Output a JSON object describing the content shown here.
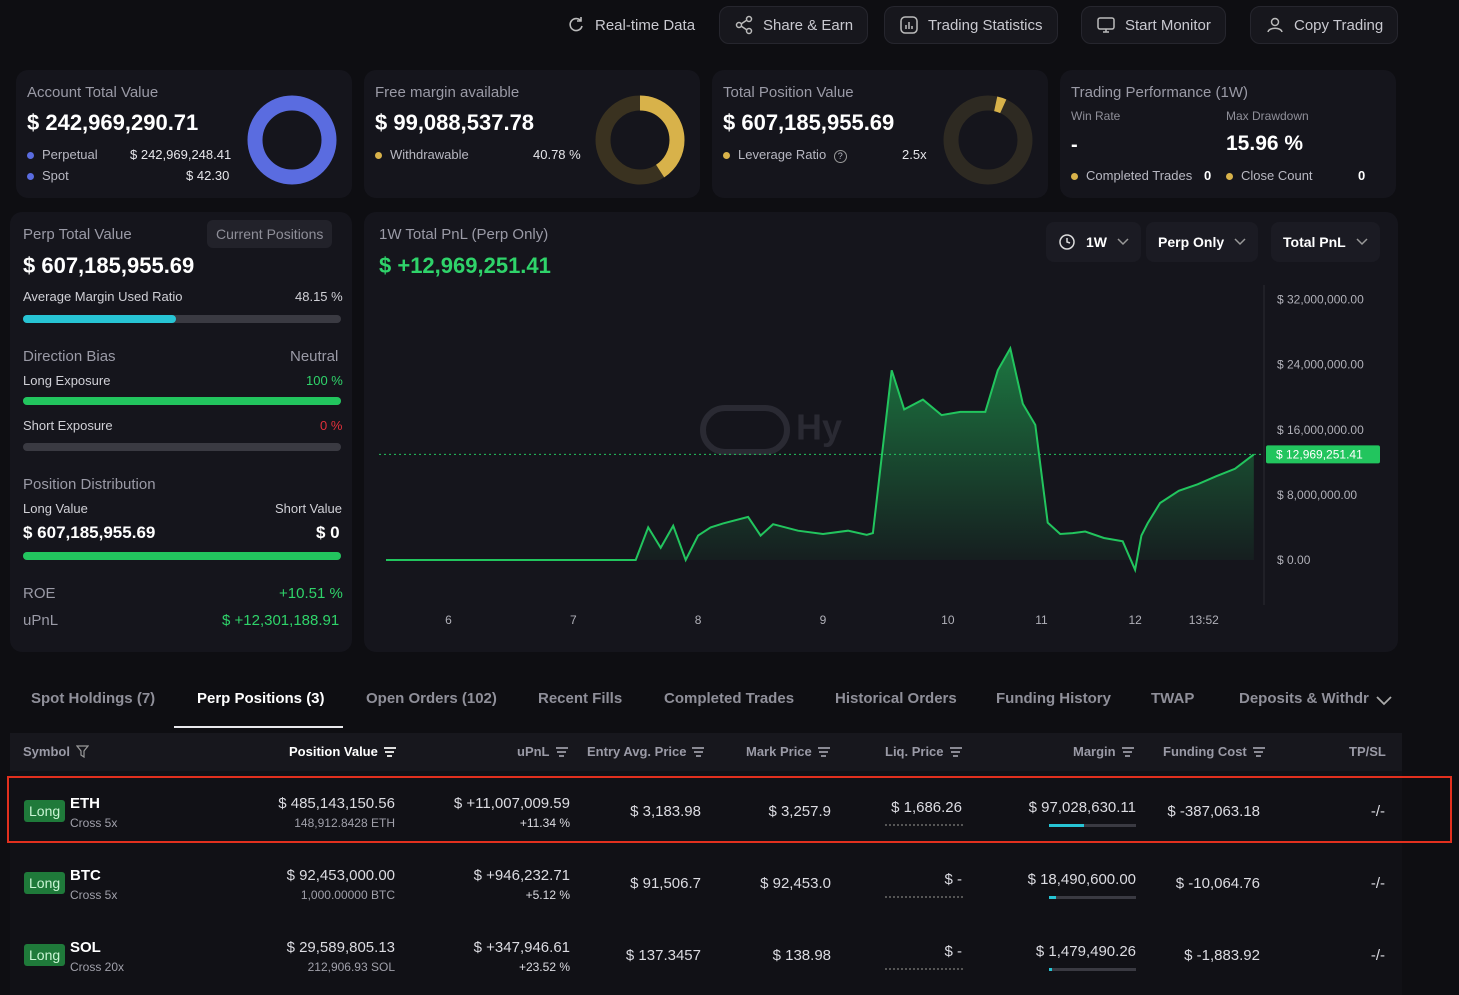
{
  "toolbar": {
    "realtime": "Real-time Data",
    "share": "Share & Earn",
    "stats": "Trading Statistics",
    "monitor": "Start Monitor",
    "copy": "Copy Trading"
  },
  "account": {
    "title": "Account Total Value",
    "value": "$ 242,969,290.71",
    "perp_label": "Perpetual",
    "perp_value": "$ 242,969,248.41",
    "spot_label": "Spot",
    "spot_value": "$ 42.30",
    "color": "#5a6ce0"
  },
  "margin": {
    "title": "Free margin available",
    "value": "$ 99,088,537.78",
    "withdraw_label": "Withdrawable",
    "withdraw_pct": "40.78 %",
    "color": "#d8b24a"
  },
  "position_value": {
    "title": "Total Position Value",
    "value": "$ 607,185,955.69",
    "leverage_label": "Leverage Ratio",
    "leverage_value": "2.5x"
  },
  "performance": {
    "title": "Trading Performance (1W)",
    "win_rate_label": "Win Rate",
    "win_rate_value": "-",
    "max_dd_label": "Max Drawdown",
    "max_dd_value": "15.96 %",
    "completed_label": "Completed Trades",
    "completed_value": "0",
    "close_label": "Close Count",
    "close_value": "0"
  },
  "perp_panel": {
    "title": "Perp Total Value",
    "current_positions": "Current Positions",
    "value": "$ 607,185,955.69",
    "avg_margin_label": "Average Margin Used Ratio",
    "avg_margin_value": "48.15 %",
    "avg_margin_fraction": 0.4815,
    "direction_label": "Direction Bias",
    "direction_value": "Neutral",
    "long_exp_label": "Long Exposure",
    "long_exp_value": "100 %",
    "short_exp_label": "Short Exposure",
    "short_exp_value": "0 %",
    "dist_label": "Position Distribution",
    "long_val_label": "Long Value",
    "short_val_label": "Short Value",
    "long_val": "$ 607,185,955.69",
    "short_val": "$ 0",
    "roe_label": "ROE",
    "roe_value": "+10.51 %",
    "upnl_label": "uPnL",
    "upnl_value": "$ +12,301,188.91"
  },
  "pnl_chart": {
    "title": "1W Total PnL (Perp Only)",
    "value": "$ +12,969,251.41",
    "range_dd": "1W",
    "scope_dd": "Perp Only",
    "metric_dd": "Total PnL",
    "watermark": "Hy",
    "current_label": "$ 12,969,251.41"
  },
  "chart_data": {
    "type": "area",
    "title": "1W Total PnL (Perp Only)",
    "x_ticks": [
      "6",
      "7",
      "8",
      "9",
      "10",
      "11",
      "12",
      "13:52"
    ],
    "y_ticks": [
      "$ 32,000,000.00",
      "$ 24,000,000.00",
      "$ 16,000,000.00",
      "$ 8,000,000.00",
      "$ 0.00"
    ],
    "ylim": [
      -5000000,
      32000000
    ],
    "x": [
      6.0,
      7.0,
      8.0,
      8.1,
      8.2,
      8.3,
      8.4,
      8.5,
      8.6,
      8.7,
      8.9,
      9.0,
      9.1,
      9.3,
      9.5,
      9.7,
      9.85,
      9.9,
      10.05,
      10.15,
      10.3,
      10.45,
      10.6,
      10.8,
      10.9,
      11.0,
      11.1,
      11.2,
      11.3,
      11.4,
      11.5,
      11.6,
      11.75,
      11.9,
      12.0,
      12.05,
      12.1,
      12.2,
      12.35,
      12.5,
      12.65,
      12.8,
      12.95
    ],
    "values": [
      0,
      0,
      0,
      4000000,
      1500000,
      4200000,
      0,
      3000000,
      4000000,
      4500000,
      5300000,
      3000000,
      4400000,
      3600000,
      3200000,
      3600000,
      3100000,
      3300000,
      23300000,
      18500000,
      19700000,
      17800000,
      18200000,
      18200000,
      23300000,
      26000000,
      19200000,
      16600000,
      4600000,
      3200000,
      3300000,
      3500000,
      2700000,
      2300000,
      -1200000,
      3000000,
      4500000,
      7000000,
      8500000,
      9300000,
      10300000,
      11200000,
      12969251.41
    ],
    "current": 12969251.41,
    "color": "#22c55e"
  },
  "tabs": [
    "Spot Holdings (7)",
    "Perp Positions (3)",
    "Open Orders (102)",
    "Recent Fills",
    "Completed Trades",
    "Historical Orders",
    "Funding History",
    "TWAP",
    "Deposits & Withdr"
  ],
  "columns": {
    "symbol": "Symbol",
    "position_value": "Position Value",
    "upnl": "uPnL",
    "entry": "Entry Avg. Price",
    "mark": "Mark Price",
    "liq": "Liq. Price",
    "margin": "Margin",
    "funding": "Funding Cost",
    "tpsl": "TP/SL"
  },
  "rows": [
    {
      "side": "Long",
      "symbol": "ETH",
      "mode": "Cross 5x",
      "value": "$ 485,143,150.56",
      "qty": "148,912.8428 ETH",
      "upnl": "$ +11,007,009.59",
      "upnl_pct": "+11.34 %",
      "entry": "$ 3,183.98",
      "mark": "$ 3,257.9",
      "liq": "$ 1,686.26",
      "margin": "$ 97,028,630.11",
      "margin_fraction": 0.4,
      "funding": "$ -387,063.18",
      "tpsl": "-/-"
    },
    {
      "side": "Long",
      "symbol": "BTC",
      "mode": "Cross 5x",
      "value": "$ 92,453,000.00",
      "qty": "1,000.00000 BTC",
      "upnl": "$ +946,232.71",
      "upnl_pct": "+5.12 %",
      "entry": "$ 91,506.7",
      "mark": "$ 92,453.0",
      "liq": "$ -",
      "margin": "$ 18,490,600.00",
      "margin_fraction": 0.08,
      "funding": "$ -10,064.76",
      "tpsl": "-/-"
    },
    {
      "side": "Long",
      "symbol": "SOL",
      "mode": "Cross 20x",
      "value": "$ 29,589,805.13",
      "qty": "212,906.93 SOL",
      "upnl": "$ +347,946.61",
      "upnl_pct": "+23.52 %",
      "entry": "$ 137.3457",
      "mark": "$ 138.98",
      "liq": "$ -",
      "margin": "$ 1,479,490.26",
      "margin_fraction": 0.04,
      "funding": "$ -1,883.92",
      "tpsl": "-/-"
    }
  ]
}
